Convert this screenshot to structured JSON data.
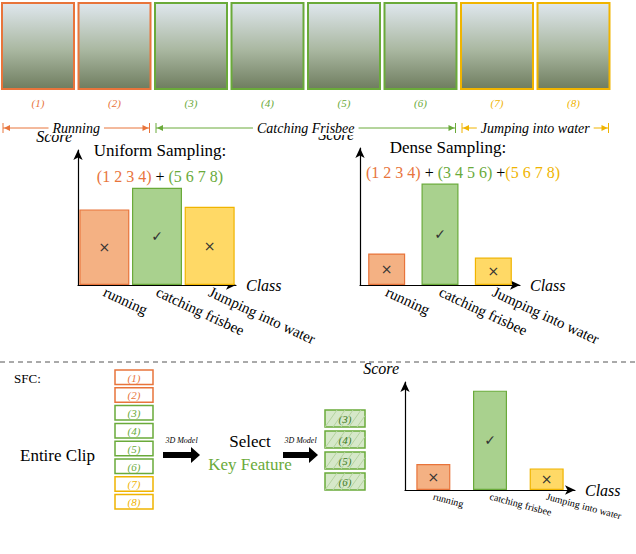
{
  "frames": [
    {
      "label": "(1)",
      "color": "#E8743B"
    },
    {
      "label": "(2)",
      "color": "#E8743B"
    },
    {
      "label": "(3)",
      "color": "#6AAA3A"
    },
    {
      "label": "(4)",
      "color": "#6AAA3A"
    },
    {
      "label": "(5)",
      "color": "#6AAA3A"
    },
    {
      "label": "(6)",
      "color": "#6AAA3A"
    },
    {
      "label": "(7)",
      "color": "#F0B400"
    },
    {
      "label": "(8)",
      "color": "#F0B400"
    }
  ],
  "segments": [
    {
      "label": "Running",
      "first": 1,
      "last": 2,
      "color": "#E8743B"
    },
    {
      "label": "Catching Frisbee",
      "first": 3,
      "last": 6,
      "color": "#6AAA3A"
    },
    {
      "label": "Jumping into water",
      "first": 7,
      "last": 8,
      "color": "#F0B400"
    }
  ],
  "chart_data": [
    {
      "type": "bar",
      "title": "Uniform Sampling:",
      "subtitle_parts": [
        {
          "text": "(1 2 3 4)",
          "color": "#E8743B"
        },
        {
          "text": " + ",
          "color": "#000000"
        },
        {
          "text": "(5 6 7 8)",
          "color": "#6AAA3A"
        }
      ],
      "categories": [
        "running",
        "catching frisbee",
        "Jumping into water"
      ],
      "values": [
        56,
        72,
        58
      ],
      "colors": [
        "#F4B183",
        "#A9D18E",
        "#FFD966"
      ],
      "annotations": [
        "×",
        "✓",
        "×"
      ],
      "xlabel": "Class",
      "ylabel": "Score",
      "ylim": [
        0,
        100
      ],
      "grid": false,
      "tick_labels": "x"
    },
    {
      "type": "bar",
      "title": "Dense Sampling:",
      "subtitle_parts": [
        {
          "text": "(1 2 3 4)",
          "color": "#E8743B"
        },
        {
          "text": " + ",
          "color": "#000000"
        },
        {
          "text": "(3 4 5 6)",
          "color": "#6AAA3A"
        },
        {
          "text": " +",
          "color": "#000000"
        },
        {
          "text": "(5 6 7 8)",
          "color": "#F0B400"
        }
      ],
      "categories": [
        "running",
        "catching frisbee",
        "Jumping into water"
      ],
      "values": [
        23,
        74,
        20
      ],
      "colors": [
        "#F4B183",
        "#A9D18E",
        "#FFD966"
      ],
      "annotations": [
        "×",
        "✓",
        "×"
      ],
      "xlabel": "Class",
      "ylabel": "Score",
      "ylim": [
        0,
        100
      ],
      "grid": false,
      "tick_labels": "x"
    },
    {
      "type": "bar",
      "categories": [
        "running",
        "catching frisbee",
        "Jumping into water"
      ],
      "values": [
        24,
        92,
        20
      ],
      "colors": [
        "#F4B183",
        "#A9D18E",
        "#FFD966"
      ],
      "annotations": [
        "×",
        "✓",
        "×"
      ],
      "xlabel": "Class",
      "ylabel": "Score",
      "ylim": [
        0,
        100
      ],
      "grid": false,
      "tick_labels": "x"
    }
  ],
  "sfc": {
    "label": "SFC:",
    "input_label": "Entire Clip",
    "model_label": "3D Model",
    "select_label": "Select",
    "key_label": "Key Feature",
    "key_color": "#6AAA3A",
    "clip": [
      {
        "label": "(1)",
        "color": "#E8743B"
      },
      {
        "label": "(2)",
        "color": "#E8743B"
      },
      {
        "label": "(3)",
        "color": "#6AAA3A"
      },
      {
        "label": "(4)",
        "color": "#6AAA3A"
      },
      {
        "label": "(5)",
        "color": "#6AAA3A"
      },
      {
        "label": "(6)",
        "color": "#6AAA3A"
      },
      {
        "label": "(7)",
        "color": "#F0B400"
      },
      {
        "label": "(8)",
        "color": "#F0B400"
      }
    ],
    "selected": [
      {
        "label": "(3)",
        "color": "#6AAA3A"
      },
      {
        "label": "(4)",
        "color": "#6AAA3A"
      },
      {
        "label": "(5)",
        "color": "#6AAA3A"
      },
      {
        "label": "(6)",
        "color": "#6AAA3A"
      }
    ]
  }
}
